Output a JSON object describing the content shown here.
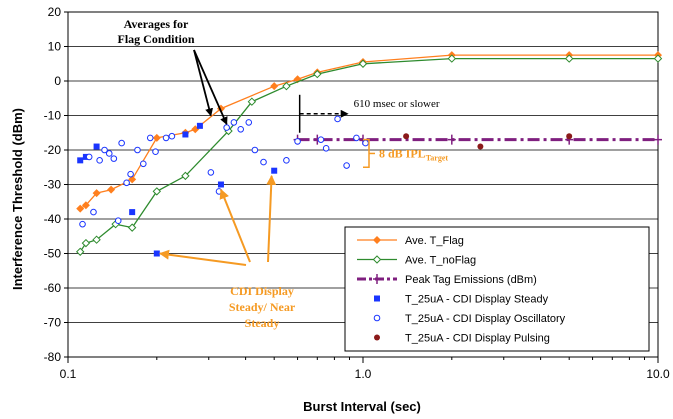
{
  "chart_data": {
    "type": "scatter",
    "xlabel": "Burst Interval (sec)",
    "ylabel": "Interference Threshold (dBm)",
    "x_scale": "log",
    "xlim": [
      0.1,
      10.0
    ],
    "ylim": [
      -80,
      20
    ],
    "grid": "horizontal",
    "x_ticks": [
      "0.1",
      "1.0",
      "10.0"
    ],
    "y_ticks": [
      20,
      10,
      0,
      -10,
      -20,
      -30,
      -40,
      -50,
      -60,
      -70,
      -80
    ],
    "legend_placement": "bottom-right",
    "series": [
      {
        "name": "Ave. T_Flag",
        "style": "line-diamond",
        "color": "#ff7f1e",
        "points": [
          [
            0.11,
            -37
          ],
          [
            0.115,
            -36
          ],
          [
            0.125,
            -32.5
          ],
          [
            0.14,
            -31.5
          ],
          [
            0.165,
            -28.5
          ],
          [
            0.2,
            -16.5
          ],
          [
            0.25,
            -15
          ],
          [
            0.27,
            -14
          ],
          [
            0.33,
            -8
          ],
          [
            0.5,
            -1.5
          ],
          [
            0.6,
            0.5
          ],
          [
            0.7,
            2.5
          ],
          [
            1.0,
            5.5
          ],
          [
            2.0,
            7.5
          ],
          [
            5.0,
            7.5
          ],
          [
            10.0,
            7.5
          ]
        ]
      },
      {
        "name": "Ave. T_noFlag",
        "style": "line-open-diamond",
        "color": "#2e8b2e",
        "points": [
          [
            0.11,
            -49.5
          ],
          [
            0.115,
            -47
          ],
          [
            0.125,
            -46
          ],
          [
            0.145,
            -41.5
          ],
          [
            0.165,
            -42.5
          ],
          [
            0.2,
            -32
          ],
          [
            0.25,
            -27.5
          ],
          [
            0.35,
            -14.5
          ],
          [
            0.42,
            -6
          ],
          [
            0.55,
            -1.5
          ],
          [
            0.7,
            2
          ],
          [
            1.0,
            5
          ],
          [
            2.0,
            6.5
          ],
          [
            5.0,
            6.5
          ],
          [
            10.0,
            6.5
          ]
        ]
      },
      {
        "name": "Peak Tag Emissions (dBm)",
        "style": "dash-dot-plus",
        "color": "#7f1f7f",
        "points": [
          [
            0.6,
            -17
          ],
          [
            0.7,
            -17
          ],
          [
            1.0,
            -17
          ],
          [
            2.0,
            -17
          ],
          [
            5.0,
            -17
          ],
          [
            10.0,
            -17
          ]
        ]
      },
      {
        "name": "T_25uA - CDI Display Steady",
        "style": "filled-square",
        "color": "#1a35ff",
        "points": [
          [
            0.11,
            -23
          ],
          [
            0.115,
            -22
          ],
          [
            0.125,
            -19
          ],
          [
            0.165,
            -38
          ],
          [
            0.2,
            -50
          ],
          [
            0.25,
            -15.5
          ],
          [
            0.28,
            -13
          ],
          [
            0.33,
            -30
          ],
          [
            0.5,
            -26
          ]
        ]
      },
      {
        "name": "T_25uA - CDI Display Oscillatory",
        "style": "open-circle",
        "color": "#1a35ff",
        "points": [
          [
            0.112,
            -41.5
          ],
          [
            0.118,
            -22
          ],
          [
            0.122,
            -38
          ],
          [
            0.128,
            -23
          ],
          [
            0.133,
            -20
          ],
          [
            0.138,
            -21
          ],
          [
            0.143,
            -22.5
          ],
          [
            0.148,
            -40.5
          ],
          [
            0.152,
            -18
          ],
          [
            0.158,
            -29.5
          ],
          [
            0.163,
            -27
          ],
          [
            0.172,
            -20
          ],
          [
            0.18,
            -24
          ],
          [
            0.19,
            -16.5
          ],
          [
            0.198,
            -20.5
          ],
          [
            0.215,
            -16.5
          ],
          [
            0.225,
            -16
          ],
          [
            0.305,
            -26.5
          ],
          [
            0.325,
            -32
          ],
          [
            0.345,
            -13.5
          ],
          [
            0.365,
            -12
          ],
          [
            0.385,
            -14
          ],
          [
            0.41,
            -12
          ],
          [
            0.43,
            -20
          ],
          [
            0.46,
            -23.5
          ],
          [
            0.55,
            -23
          ],
          [
            0.6,
            -17.5
          ],
          [
            0.72,
            -17
          ],
          [
            0.75,
            -19.5
          ],
          [
            0.82,
            -11
          ],
          [
            0.88,
            -24.5
          ],
          [
            0.95,
            -16.5
          ],
          [
            1.02,
            -18
          ]
        ]
      },
      {
        "name": "T_25uA - CDI Display Pulsing",
        "style": "filled-circle",
        "color": "#8b1a1a",
        "points": [
          [
            1.4,
            -16
          ],
          [
            2.5,
            -19
          ],
          [
            5.0,
            -16
          ]
        ]
      }
    ],
    "annotations": [
      {
        "text": "Averages for Flag Condition",
        "lines": [
          "Averages for",
          "Flag Condition"
        ]
      },
      {
        "text": "610 msec or slower"
      },
      {
        "text": "8 dB IPL_Target",
        "main": "8 dB IPL",
        "subscript": "Target"
      },
      {
        "text": "CDI Display Steady/ Near Steady",
        "lines": [
          "CDI Display",
          "Steady/ Near",
          "Steady"
        ]
      }
    ],
    "colors": {
      "flag": "#ff7f1e",
      "noflag": "#2e8b2e",
      "peak": "#7f1f7f",
      "blue": "#1a35ff",
      "pulsing": "#8b1a1a",
      "annotation_orange": "#f59a23"
    }
  }
}
